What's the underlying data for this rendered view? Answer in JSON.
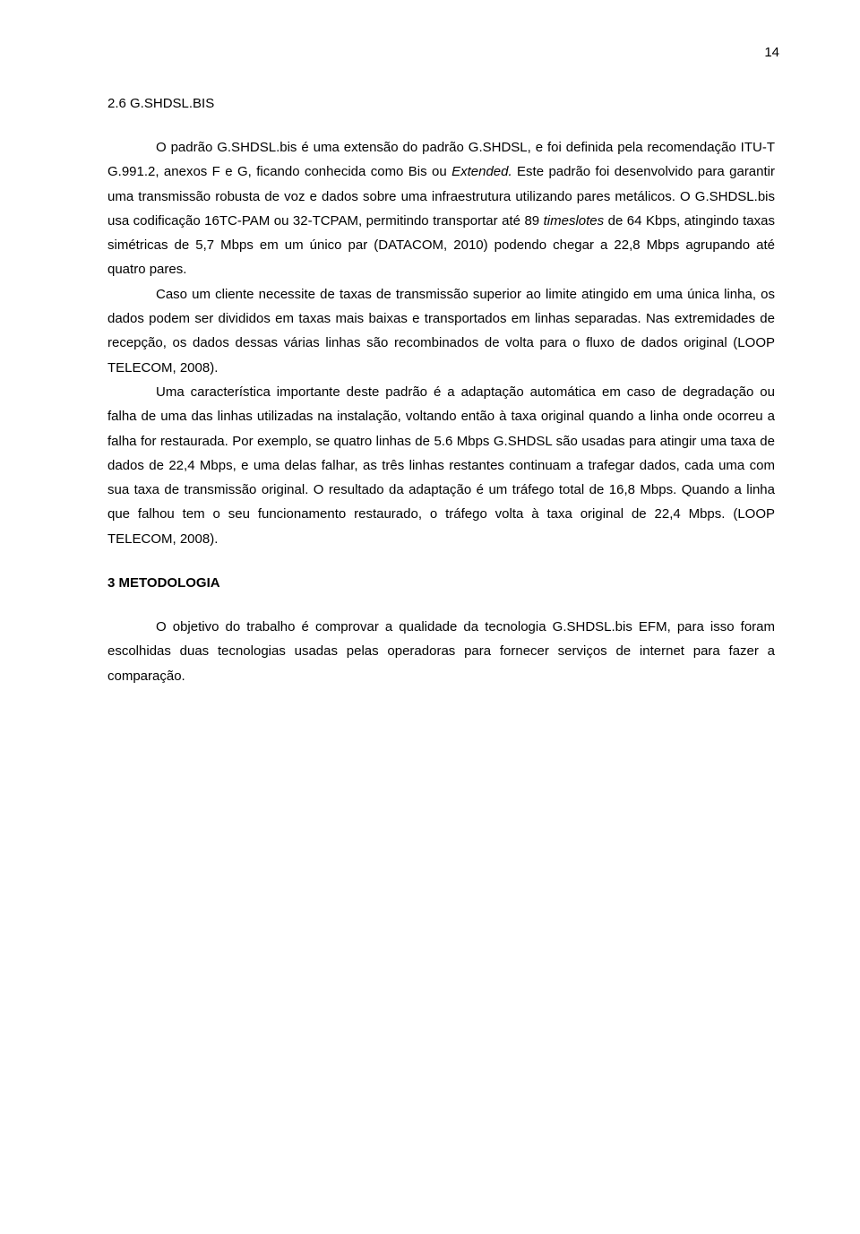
{
  "pageNumber": "14",
  "heading26": "2.6   G.SHDSL.BIS",
  "p1a": "O padrão G.SHDSL.bis é uma extensão do padrão G.SHDSL, e foi definida pela recomendação ITU-T G.991.2, anexos F e G, ficando conhecida como Bis ou ",
  "p1b": "Extended.",
  "p1c": " Este padrão foi desenvolvido para garantir uma transmissão robusta de voz e dados sobre uma infraestrutura utilizando pares metálicos. O G.SHDSL.bis usa codificação 16TC-PAM ou 32-TCPAM, permitindo transportar até 89 ",
  "p1d": "timeslotes",
  "p1e": " de 64 Kbps, atingindo taxas simétricas de 5,7 Mbps em um único par (DATACOM, 2010) podendo chegar a 22,8 Mbps agrupando até quatro pares.",
  "p2": "Caso um cliente necessite de taxas de transmissão superior ao limite atingido em uma única linha, os dados podem ser divididos em taxas mais baixas e transportados em linhas separadas. Nas extremidades de recepção, os dados dessas várias linhas são recombinados de volta para o fluxo de dados original (LOOP TELECOM, 2008).",
  "p3": "Uma característica importante deste padrão é a adaptação automática em caso de degradação ou falha de uma das linhas utilizadas na instalação, voltando então à taxa original quando a linha onde ocorreu a falha for restaurada. Por exemplo, se quatro linhas de 5.6 Mbps G.SHDSL são usadas para atingir uma taxa de dados de 22,4 Mbps, e uma delas falhar, as três linhas restantes continuam a trafegar dados, cada uma com sua taxa de transmissão original. O resultado da adaptação é um tráfego total de 16,8 Mbps. Quando a linha que falhou tem o seu funcionamento restaurado, o tráfego volta à taxa original de 22,4 Mbps. (LOOP TELECOM, 2008).",
  "heading3": "3    METODOLOGIA",
  "p4": "O objetivo do trabalho é comprovar a qualidade da tecnologia G.SHDSL.bis EFM, para isso foram escolhidas duas tecnologias usadas pelas operadoras  para fornecer serviços de internet para fazer a comparação."
}
